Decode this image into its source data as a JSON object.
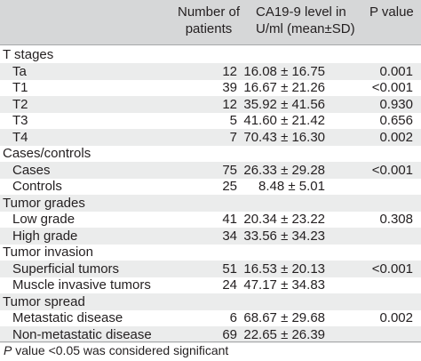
{
  "header": {
    "col_number": [
      "Number of",
      "patients"
    ],
    "col_ca": [
      "CA19-9 level in",
      "U/ml (mean±SD)"
    ],
    "col_p": "P value"
  },
  "rows": [
    {
      "label": "T stages",
      "n": "",
      "ca": "",
      "p": "",
      "section": true
    },
    {
      "label": "Ta",
      "n": "12",
      "ca": "16.08 ± 16.75",
      "p": "0.001"
    },
    {
      "label": "T1",
      "n": "39",
      "ca": "16.67 ± 21.26",
      "p": "<0.001"
    },
    {
      "label": "T2",
      "n": "12",
      "ca": "35.92 ± 41.56",
      "p": "0.930"
    },
    {
      "label": "T3",
      "n": "5",
      "ca": "41.60 ± 21.42",
      "p": "0.656"
    },
    {
      "label": "T4",
      "n": "7",
      "ca": "70.43 ± 16.30",
      "p": "0.002"
    },
    {
      "label": "Cases/controls",
      "n": "",
      "ca": "",
      "p": "",
      "section": true
    },
    {
      "label": "Cases",
      "n": "75",
      "ca": "26.33 ± 29.28",
      "p": "<0.001"
    },
    {
      "label": "Controls",
      "n": "25",
      "ca": "8.48 ± 5.01",
      "p": ""
    },
    {
      "label": "Tumor grades",
      "n": "",
      "ca": "",
      "p": "",
      "section": true
    },
    {
      "label": "Low grade",
      "n": "41",
      "ca": "20.34 ± 23.22",
      "p": "0.308"
    },
    {
      "label": "High grade",
      "n": "34",
      "ca": "33.56 ± 34.23",
      "p": ""
    },
    {
      "label": "Tumor invasion",
      "n": "",
      "ca": "",
      "p": "",
      "section": true
    },
    {
      "label": "Superficial tumors",
      "n": "51",
      "ca": "16.53 ± 20.13",
      "p": "<0.001"
    },
    {
      "label": "Muscle invasive tumors",
      "n": "24",
      "ca": "47.17 ± 34.83",
      "p": ""
    },
    {
      "label": "Tumor spread",
      "n": "",
      "ca": "",
      "p": "",
      "section": true
    },
    {
      "label": "Metastatic disease",
      "n": "6",
      "ca": "68.67 ± 29.68",
      "p": "0.002"
    },
    {
      "label": "Non-metastatic disease",
      "n": "69",
      "ca": "22.65 ± 26.39",
      "p": ""
    }
  ],
  "footnote": {
    "p_italic": "P",
    "rest": " value <0.05 was considered significant"
  }
}
